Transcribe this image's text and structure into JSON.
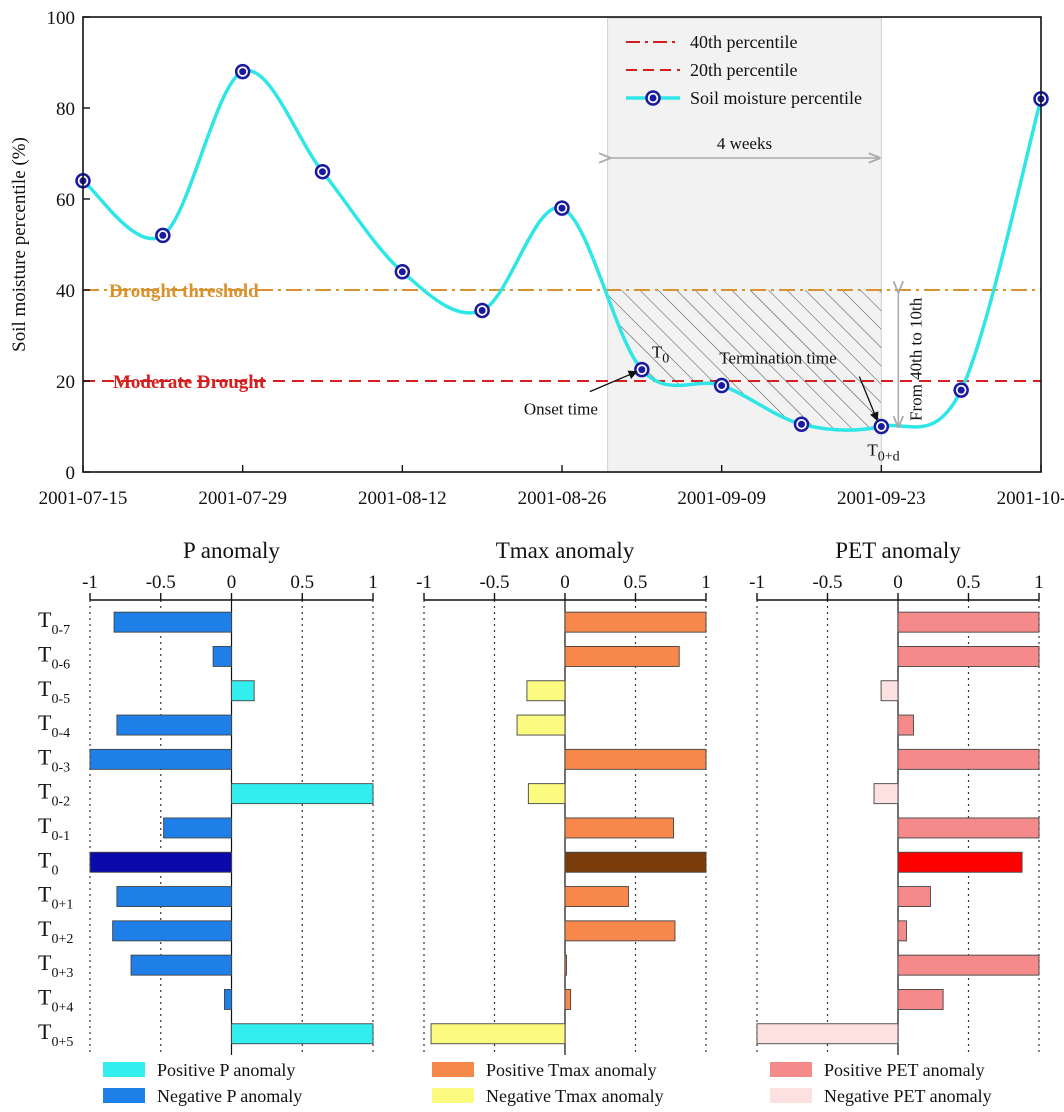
{
  "chart_data": [
    {
      "type": "line",
      "xlabel": "",
      "ylabel": "Soil moisture percentile (%)",
      "ylim": [
        0,
        100
      ],
      "yticks": [
        "0",
        "20",
        "40",
        "60",
        "80",
        "100"
      ],
      "xticks": [
        "2001-07-15",
        "2001-07-29",
        "2001-08-12",
        "2001-08-26",
        "2001-09-09",
        "2001-09-23",
        "2001-10-07"
      ],
      "grid": false,
      "legend": {
        "placement": "top-right",
        "entries": [
          "40th percentile",
          "20th percentile",
          "Soil moisture percentile"
        ]
      },
      "series": [
        {
          "name": "Soil moisture percentile",
          "color": "#2fe6e6",
          "marker_color": "#1a1aa0",
          "x": [
            "2001-07-15",
            "2001-07-22",
            "2001-07-29",
            "2001-08-05",
            "2001-08-12",
            "2001-08-19",
            "2001-08-26",
            "2001-09-02",
            "2001-09-09",
            "2001-09-16",
            "2001-09-23",
            "2001-09-30",
            "2001-10-07"
          ],
          "y": [
            64,
            52,
            88,
            66,
            44,
            35.5,
            58,
            22.5,
            19,
            10.5,
            10,
            18,
            82
          ]
        }
      ],
      "reference_lines": [
        {
          "name": "40th percentile",
          "y": 40,
          "color": "#d9922e",
          "style": "dash-dot",
          "label": "Drought threshold"
        },
        {
          "name": "20th percentile",
          "y": 20,
          "color": "#d42020",
          "style": "dashed",
          "label": "Moderate Drought"
        }
      ],
      "shaded_period": {
        "from": "2001-08-30",
        "to": "2001-09-23",
        "label": "4 weeks"
      },
      "annotations": {
        "t0": "T",
        "t0_sub": "0",
        "t0d": "T",
        "t0d_sub": "0+d",
        "onset": "Onset time",
        "termination": "Termination time",
        "severity": "From 40th to 10th"
      }
    },
    {
      "type": "bar",
      "title": "P anomaly",
      "xlim": [
        -1,
        1
      ],
      "xticks": [
        "-1",
        "-0.5",
        "0",
        "0.5",
        "1"
      ],
      "categories": [
        "0-7",
        "0-6",
        "0-5",
        "0-4",
        "0-3",
        "0-2",
        "0-1",
        "0",
        "0+1",
        "0+2",
        "0+3",
        "0+4",
        "0+5"
      ],
      "values": [
        -0.83,
        -0.13,
        0.16,
        -0.81,
        -1.0,
        1.0,
        -0.48,
        -1.0,
        -0.81,
        -0.84,
        -0.71,
        -0.05,
        1.0
      ],
      "colors": {
        "positive": "#33eeee",
        "negative": "#1e7fe8",
        "t0": "#0a0aaa"
      }
    },
    {
      "type": "bar",
      "title": "Tmax anomaly",
      "xlim": [
        -1,
        1
      ],
      "xticks": [
        "-1",
        "-0.5",
        "0",
        "0.5",
        "1"
      ],
      "categories": [
        "0-7",
        "0-6",
        "0-5",
        "0-4",
        "0-3",
        "0-2",
        "0-1",
        "0",
        "0+1",
        "0+2",
        "0+3",
        "0+4",
        "0+5"
      ],
      "values": [
        1.0,
        0.81,
        -0.27,
        -0.34,
        1.0,
        -0.26,
        0.77,
        1.0,
        0.45,
        0.78,
        0.01,
        0.04,
        -0.95
      ],
      "colors": {
        "positive": "#f5884a",
        "negative": "#fbfb80",
        "t0": "#7a3c0a"
      }
    },
    {
      "type": "bar",
      "title": "PET anomaly",
      "xlim": [
        -1,
        1
      ],
      "xticks": [
        "-1",
        "-0.5",
        "0",
        "0.5",
        "1"
      ],
      "categories": [
        "0-7",
        "0-6",
        "0-5",
        "0-4",
        "0-3",
        "0-2",
        "0-1",
        "0",
        "0+1",
        "0+2",
        "0+3",
        "0+4",
        "0+5"
      ],
      "values": [
        1.0,
        1.0,
        -0.12,
        0.11,
        1.0,
        -0.17,
        1.0,
        0.88,
        0.23,
        0.06,
        1.0,
        0.32,
        -1.0
      ],
      "colors": {
        "positive": "#f58a8a",
        "negative": "#fde0e0",
        "t0": "#ff0000"
      }
    }
  ],
  "bar_category_prefix": "T",
  "bar_legend": [
    {
      "label": "Positive  P anomaly",
      "color": "#33eeee"
    },
    {
      "label": "Negative  P anomaly",
      "color": "#1e7fe8"
    },
    {
      "label": "Positive Tmax anomaly",
      "color": "#f5884a"
    },
    {
      "label": "Negative Tmax anomaly",
      "color": "#fbfb80"
    },
    {
      "label": "Positive PET anomaly",
      "color": "#f58a8a"
    },
    {
      "label": "Negative PET anomaly",
      "color": "#fde0e0"
    }
  ]
}
